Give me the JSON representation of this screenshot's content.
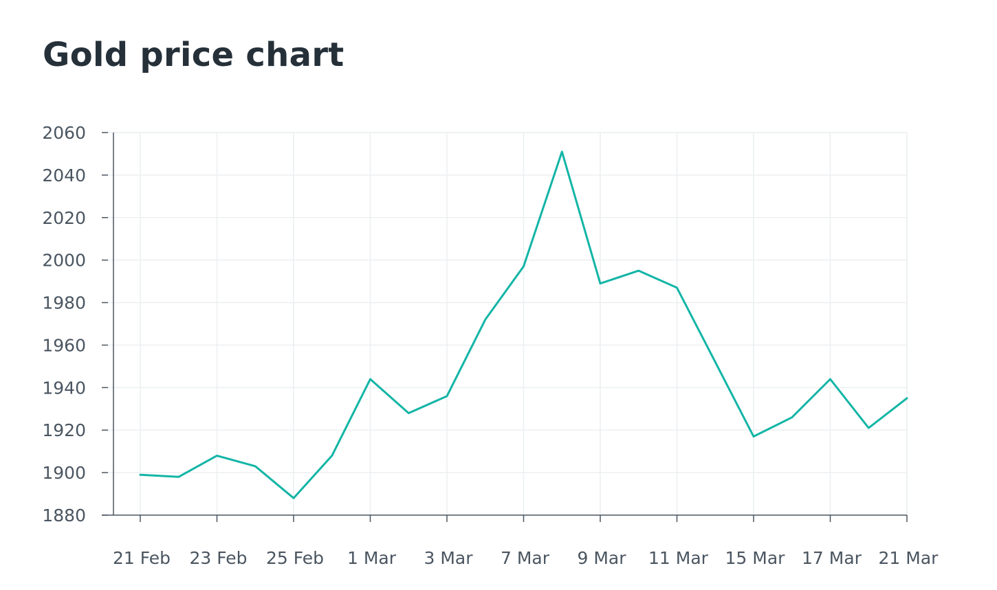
{
  "chart_data": {
    "type": "line",
    "title": "Gold price chart",
    "xlabel": "",
    "ylabel": "",
    "grid": true,
    "line_color": "#12b5a6",
    "ylim": [
      1880,
      2060
    ],
    "yticks": [
      1880,
      1900,
      1920,
      1940,
      1960,
      1980,
      2000,
      2020,
      2040,
      2060
    ],
    "xtick_labels": [
      "21 Feb",
      "23 Feb",
      "25 Feb",
      "1 Mar",
      "3 Mar",
      "7 Mar",
      "9 Mar",
      "11 Mar",
      "15 Mar",
      "17 Mar",
      "21 Mar"
    ],
    "series": [
      {
        "values": [
          1899,
          1898,
          1908,
          1903,
          1888,
          1908,
          1944,
          1928,
          1936,
          1972,
          1997,
          2051,
          1989,
          1995,
          1987,
          1952,
          1917,
          1926,
          1944,
          1921,
          1935
        ]
      }
    ]
  }
}
